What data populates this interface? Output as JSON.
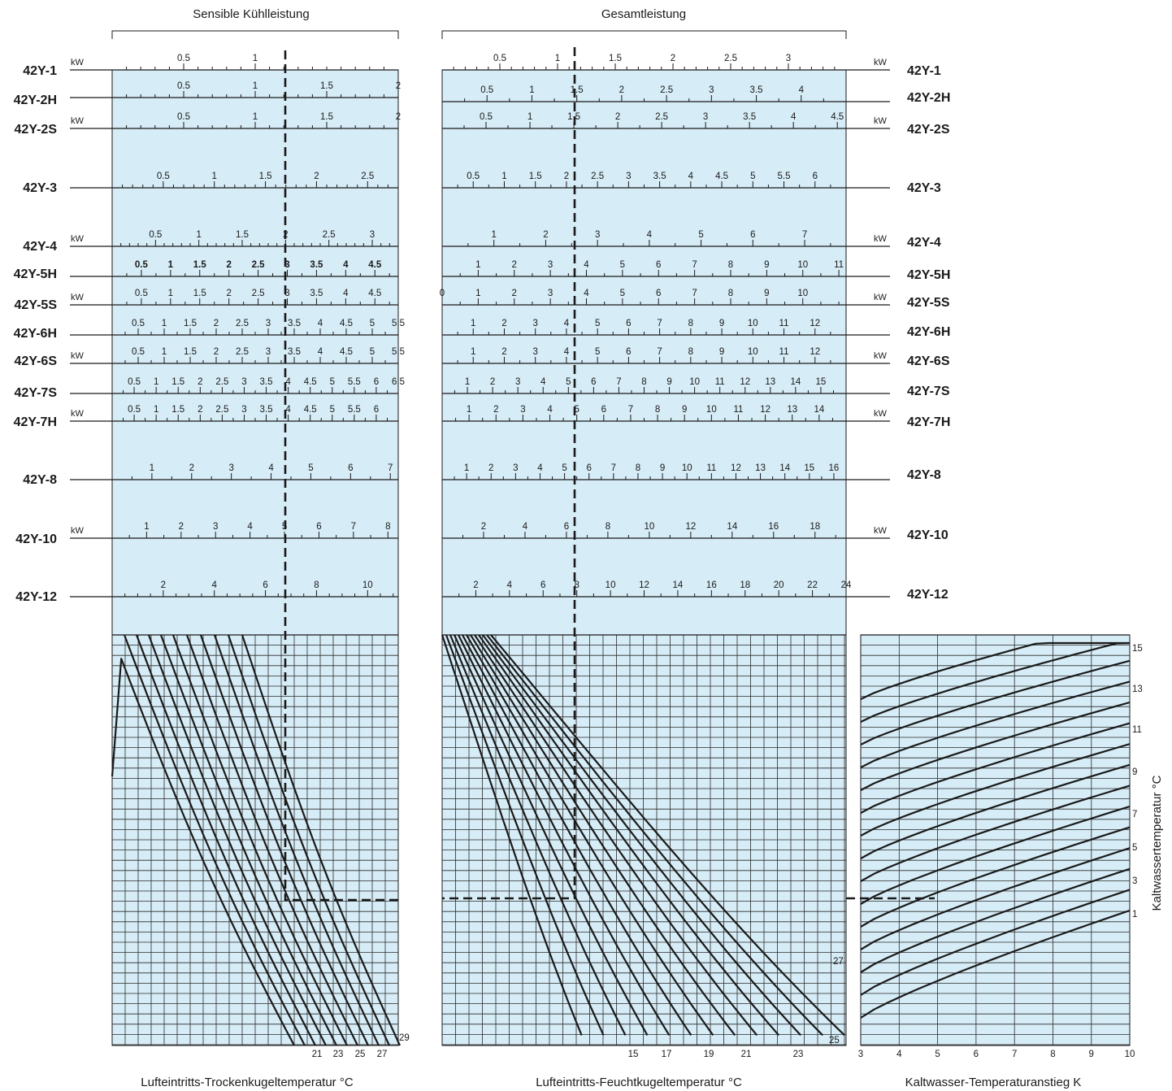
{
  "chart_data": {
    "type": "line",
    "headers": {
      "left": "Sensible Kühlleistung",
      "mid": "Gesamtleistung"
    },
    "unit": "kW",
    "models": [
      "42Y-1",
      "42Y-2H",
      "42Y-2S",
      "42Y-3",
      "42Y-4",
      "42Y-5H",
      "42Y-5S",
      "42Y-6H",
      "42Y-6S",
      "42Y-7S",
      "42Y-7H",
      "42Y-8",
      "42Y-10",
      "42Y-12"
    ],
    "left_scales": [
      {
        "model": "42Y-1",
        "max": 2.0,
        "labels": [
          0.5,
          1
        ]
      },
      {
        "model": "42Y-2H",
        "max": 2.0,
        "labels": [
          0.5,
          1,
          1.5,
          2
        ]
      },
      {
        "model": "42Y-2S",
        "max": 2.0,
        "labels": [
          0.5,
          1,
          1.5,
          2
        ]
      },
      {
        "model": "42Y-3",
        "max": 2.8,
        "labels": [
          0.5,
          1,
          1.5,
          2,
          2.5
        ]
      },
      {
        "model": "42Y-4",
        "max": 3.3,
        "labels": [
          0.5,
          1,
          1.5,
          2,
          2.5,
          3
        ]
      },
      {
        "model": "42Y-5H",
        "max": 4.9,
        "labels": [
          0.5,
          1,
          1.5,
          2,
          2.5,
          3,
          3.5,
          4,
          4.5
        ]
      },
      {
        "model": "42Y-5S",
        "max": 4.9,
        "labels": [
          0.5,
          1,
          1.5,
          2,
          2.5,
          3,
          3.5,
          4,
          4.5
        ]
      },
      {
        "model": "42Y-6H",
        "max": 5.5,
        "labels": [
          0.5,
          1,
          1.5,
          2,
          2.5,
          3,
          3.5,
          4,
          4.5,
          5,
          5.5
        ]
      },
      {
        "model": "42Y-6S",
        "max": 5.5,
        "labels": [
          0.5,
          1,
          1.5,
          2,
          2.5,
          3,
          3.5,
          4,
          4.5,
          5,
          5.5
        ]
      },
      {
        "model": "42Y-7S",
        "max": 6.5,
        "labels": [
          0.5,
          1,
          1.5,
          2,
          2.5,
          3,
          3.5,
          4,
          4.5,
          5,
          5.5,
          6,
          6.5
        ]
      },
      {
        "model": "42Y-7H",
        "max": 6.5,
        "labels": [
          0.5,
          1,
          1.5,
          2,
          2.5,
          3,
          3.5,
          4,
          4.5,
          5,
          5.5,
          6
        ]
      },
      {
        "model": "42Y-8",
        "max": 7.2,
        "labels": [
          1,
          2,
          3,
          4,
          5,
          6,
          7
        ]
      },
      {
        "model": "42Y-10",
        "max": 8.3,
        "labels": [
          1,
          2,
          3,
          4,
          5,
          6,
          7,
          8
        ]
      },
      {
        "model": "42Y-12",
        "max": 11.2,
        "labels": [
          2,
          4,
          6,
          8,
          10
        ]
      }
    ],
    "right_scales": [
      {
        "model": "42Y-1",
        "max": 3.5,
        "labels": [
          0.5,
          1,
          1.5,
          2,
          2.5,
          3
        ]
      },
      {
        "model": "42Y-2H",
        "max": 4.5,
        "labels": [
          0.5,
          1,
          1.5,
          2,
          2.5,
          3,
          3.5,
          4
        ]
      },
      {
        "model": "42Y-2S",
        "max": 4.6,
        "labels": [
          0.5,
          1,
          1.5,
          2,
          2.5,
          3,
          3.5,
          4,
          4.5
        ]
      },
      {
        "model": "42Y-3",
        "max": 6.5,
        "labels": [
          0.5,
          1,
          1.5,
          2,
          2.5,
          3,
          3.5,
          4,
          4.5,
          5,
          5.5,
          6
        ]
      },
      {
        "model": "42Y-4",
        "max": 7.8,
        "labels": [
          1,
          2,
          3,
          4,
          5,
          6,
          7
        ]
      },
      {
        "model": "42Y-5H",
        "max": 11.2,
        "labels": [
          1,
          2,
          3,
          4,
          5,
          6,
          7,
          8,
          9,
          10,
          11
        ]
      },
      {
        "model": "42Y-5S",
        "max": 11.2,
        "labels": [
          0,
          1,
          2,
          3,
          4,
          5,
          6,
          7,
          8,
          9,
          10
        ]
      },
      {
        "model": "42Y-6H",
        "max": 13.0,
        "labels": [
          1,
          2,
          3,
          4,
          5,
          6,
          7,
          8,
          9,
          10,
          11,
          12
        ]
      },
      {
        "model": "42Y-6S",
        "max": 13.0,
        "labels": [
          1,
          2,
          3,
          4,
          5,
          6,
          7,
          8,
          9,
          10,
          11,
          12
        ]
      },
      {
        "model": "42Y-7S",
        "max": 16.0,
        "labels": [
          1,
          2,
          3,
          4,
          5,
          6,
          7,
          8,
          9,
          10,
          11,
          12,
          13,
          14,
          15
        ]
      },
      {
        "model": "42Y-7H",
        "max": 15.0,
        "labels": [
          1,
          2,
          3,
          4,
          5,
          6,
          7,
          8,
          9,
          10,
          11,
          12,
          13,
          14
        ]
      },
      {
        "model": "42Y-8",
        "max": 16.5,
        "labels": [
          1,
          2,
          3,
          4,
          5,
          6,
          7,
          8,
          9,
          10,
          11,
          12,
          13,
          14,
          15,
          16
        ]
      },
      {
        "model": "42Y-10",
        "max": 19.5,
        "labels": [
          2,
          4,
          6,
          8,
          10,
          12,
          14,
          16,
          18
        ]
      },
      {
        "model": "42Y-12",
        "max": 24.0,
        "labels": [
          2,
          4,
          6,
          8,
          10,
          12,
          14,
          16,
          18,
          20,
          22,
          24
        ]
      }
    ],
    "panels": [
      {
        "name": "sensible",
        "xlabel": "Lufteintritts-Trockenkugeltemperatur °C",
        "curve_labels": [
          21,
          23,
          25,
          27,
          29
        ],
        "curves": 11
      },
      {
        "name": "total",
        "xlabel": "Lufteintritts-Feuchtkugeltemperatur °C",
        "curve_labels": [
          15,
          17,
          19,
          21,
          23,
          25,
          27
        ],
        "curves": 13
      },
      {
        "name": "water",
        "xlabel": "Kaltwasser-Temperaturanstieg K",
        "ylabel": "Kaltwassertemperatur °C",
        "x_ticks": [
          3,
          4,
          5,
          6,
          7,
          8,
          9,
          10
        ],
        "xlim": [
          3,
          10
        ],
        "curve_labels": [
          1,
          3,
          5,
          7,
          9,
          11,
          13,
          15
        ],
        "curves": 15
      }
    ],
    "grid": true,
    "colors": {
      "panel": "#d6ecf6",
      "line": "#1a1a1a",
      "grid": "#2a2a2a"
    }
  }
}
